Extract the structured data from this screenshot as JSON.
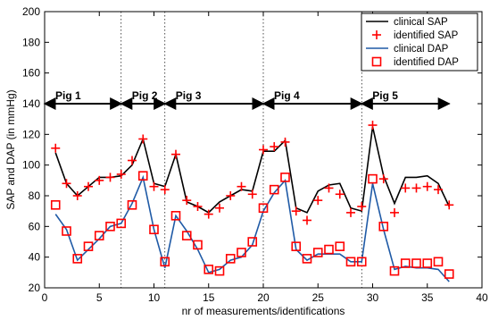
{
  "chart_data": {
    "type": "line",
    "title": "",
    "xlabel": "nr of measurements/identifications",
    "ylabel": "SAP and DAP (in mmHg)",
    "xlim": [
      0,
      40
    ],
    "ylim": [
      20,
      200
    ],
    "xticks": [
      0,
      5,
      10,
      15,
      20,
      25,
      30,
      35,
      40
    ],
    "yticks": [
      20,
      40,
      60,
      80,
      100,
      120,
      140,
      160,
      180,
      200
    ],
    "grid": false,
    "legend_position": "top-right",
    "x": [
      1,
      2,
      3,
      4,
      5,
      6,
      7,
      8,
      9,
      10,
      11,
      12,
      13,
      14,
      15,
      16,
      17,
      18,
      19,
      20,
      21,
      22,
      23,
      24,
      25,
      26,
      27,
      28,
      29,
      30,
      31,
      32,
      33,
      34,
      35,
      36,
      37
    ],
    "series": [
      {
        "name": "clinical SAP",
        "style": "line",
        "color": "#000000",
        "values": [
          108,
          88,
          80,
          86,
          92,
          92,
          93,
          100,
          117,
          88,
          86,
          107,
          76,
          73,
          69,
          76,
          80,
          84,
          83,
          109,
          109,
          116,
          72,
          69,
          83,
          87,
          88,
          72,
          70,
          125,
          93,
          75,
          92,
          92,
          93,
          88,
          73
        ]
      },
      {
        "name": "identified SAP",
        "style": "plus",
        "color": "#ff0000",
        "values": [
          111,
          88,
          80,
          86,
          90,
          92,
          94,
          103,
          117,
          86,
          84,
          107,
          77,
          73,
          68,
          72,
          80,
          86,
          81,
          110,
          112,
          115,
          70,
          64,
          77,
          85,
          81,
          69,
          73,
          126,
          91,
          69,
          85,
          85,
          86,
          84,
          74
        ]
      },
      {
        "name": "clinical DAP",
        "style": "line",
        "color": "#1f5aa6",
        "values": [
          68,
          58,
          38,
          45,
          52,
          60,
          62,
          75,
          92,
          58,
          33,
          67,
          57,
          45,
          30,
          32,
          38,
          40,
          48,
          70,
          82,
          90,
          45,
          38,
          42,
          42,
          42,
          37,
          37,
          88,
          58,
          32,
          34,
          33,
          33,
          32,
          24
        ]
      },
      {
        "name": "identified DAP",
        "style": "square",
        "color": "#ff0000",
        "values": [
          74,
          57,
          39,
          47,
          54,
          60,
          62,
          74,
          93,
          58,
          37,
          67,
          54,
          48,
          32,
          31,
          39,
          43,
          50,
          72,
          84,
          92,
          47,
          39,
          43,
          45,
          47,
          37,
          37,
          91,
          60,
          31,
          36,
          36,
          36,
          37,
          29
        ]
      }
    ],
    "annotations": {
      "vlines": [
        7,
        11,
        20,
        29
      ],
      "arrow_y": 140,
      "groups": [
        {
          "label": "Pig 1",
          "from": 0,
          "to": 7
        },
        {
          "label": "Pig 2",
          "from": 7,
          "to": 11
        },
        {
          "label": "Pig 3",
          "from": 11,
          "to": 20
        },
        {
          "label": "Pig 4",
          "from": 20,
          "to": 29
        },
        {
          "label": "Pig 5",
          "from": 29,
          "to": 37
        }
      ]
    }
  }
}
